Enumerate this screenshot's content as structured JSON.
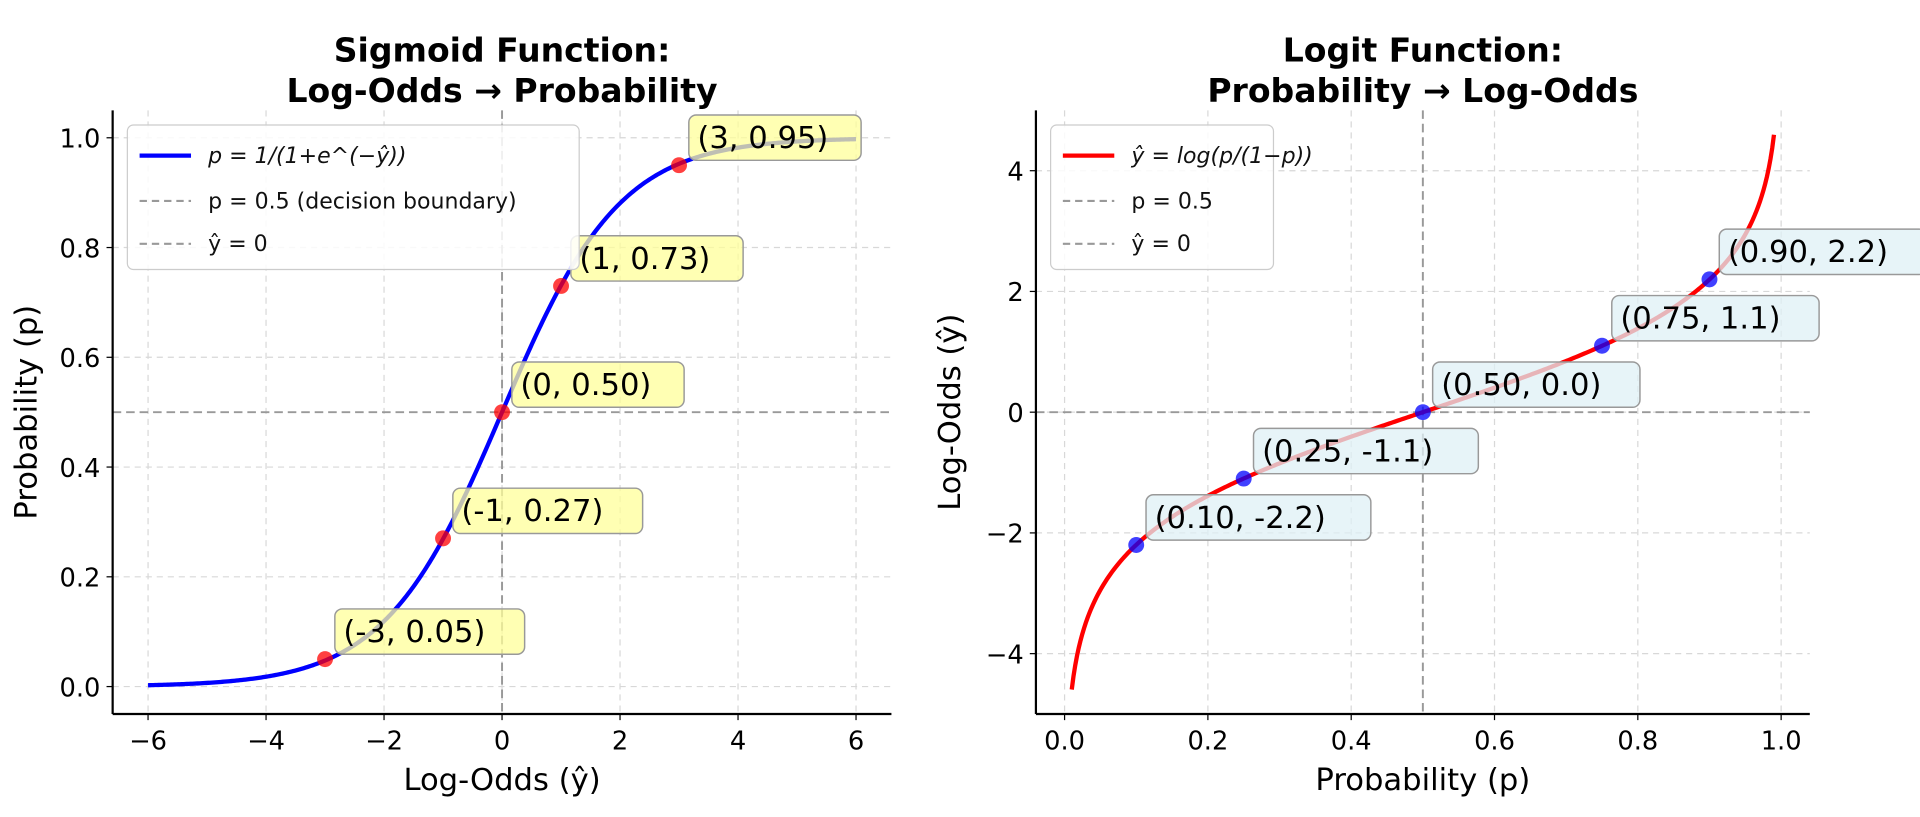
{
  "chart_data": [
    {
      "type": "line",
      "title_lines": [
        "Sigmoid Function:",
        "Log-Odds → Probability"
      ],
      "xlabel": "Log-Odds (ŷ)",
      "ylabel": "Probability (p)",
      "xlim": [
        -6.6,
        6.6
      ],
      "ylim": [
        -0.05,
        1.05
      ],
      "xticks": [
        -6,
        -4,
        -2,
        0,
        2,
        4,
        6
      ],
      "xtick_labels": [
        "−6",
        "−4",
        "−2",
        "0",
        "2",
        "4",
        "6"
      ],
      "yticks": [
        0.0,
        0.2,
        0.4,
        0.6,
        0.8,
        1.0
      ],
      "ytick_labels": [
        "0.0",
        "0.2",
        "0.4",
        "0.6",
        "0.8",
        "1.0"
      ],
      "grid": true,
      "legend_position": "top-left",
      "legend": [
        "p = 1/(1+e^(−ŷ))",
        "p = 0.5 (decision boundary)",
        "ŷ = 0"
      ],
      "curve": {
        "function": "sigmoid",
        "x_range": [
          -6,
          6
        ],
        "color": "#0000ff"
      },
      "ref_lines": {
        "horizontal": 0.5,
        "vertical": 0
      },
      "points": {
        "x": [
          -3,
          -1,
          0,
          1,
          3
        ],
        "y": [
          0.05,
          0.27,
          0.5,
          0.73,
          0.95
        ],
        "labels": [
          "(-3, 0.05)",
          "(-1, 0.27)",
          "(0, 0.50)",
          "(1, 0.73)",
          "(3, 0.95)"
        ],
        "color": "#ff0000",
        "label_bg": "#ffff99"
      }
    },
    {
      "type": "line",
      "title_lines": [
        "Logit Function:",
        "Probability → Log-Odds"
      ],
      "xlabel": "Probability (p)",
      "ylabel": "Log-Odds (ŷ)",
      "xlim": [
        -0.04,
        1.04
      ],
      "ylim": [
        -5,
        5
      ],
      "xticks": [
        0.0,
        0.2,
        0.4,
        0.6,
        0.8,
        1.0
      ],
      "xtick_labels": [
        "0.0",
        "0.2",
        "0.4",
        "0.6",
        "0.8",
        "1.0"
      ],
      "yticks": [
        -4,
        -2,
        0,
        2,
        4
      ],
      "ytick_labels": [
        "−4",
        "−2",
        "0",
        "2",
        "4"
      ],
      "grid": true,
      "legend_position": "top-left",
      "legend": [
        "ŷ = log(p/(1−p))",
        "p = 0.5",
        "ŷ = 0"
      ],
      "curve": {
        "function": "logit",
        "x_range": [
          0.01,
          0.99
        ],
        "color": "#ff0000"
      },
      "ref_lines": {
        "horizontal": 0,
        "vertical": 0.5
      },
      "points": {
        "x": [
          0.1,
          0.25,
          0.5,
          0.75,
          0.9
        ],
        "y": [
          -2.2,
          -1.1,
          0.0,
          1.1,
          2.2
        ],
        "labels": [
          "(0.10, -2.2)",
          "(0.25, -1.1)",
          "(0.50, 0.0)",
          "(0.75, 1.1)",
          "(0.90, 2.2)"
        ],
        "color": "#0000ff",
        "label_bg": "#dff0f5"
      }
    }
  ]
}
